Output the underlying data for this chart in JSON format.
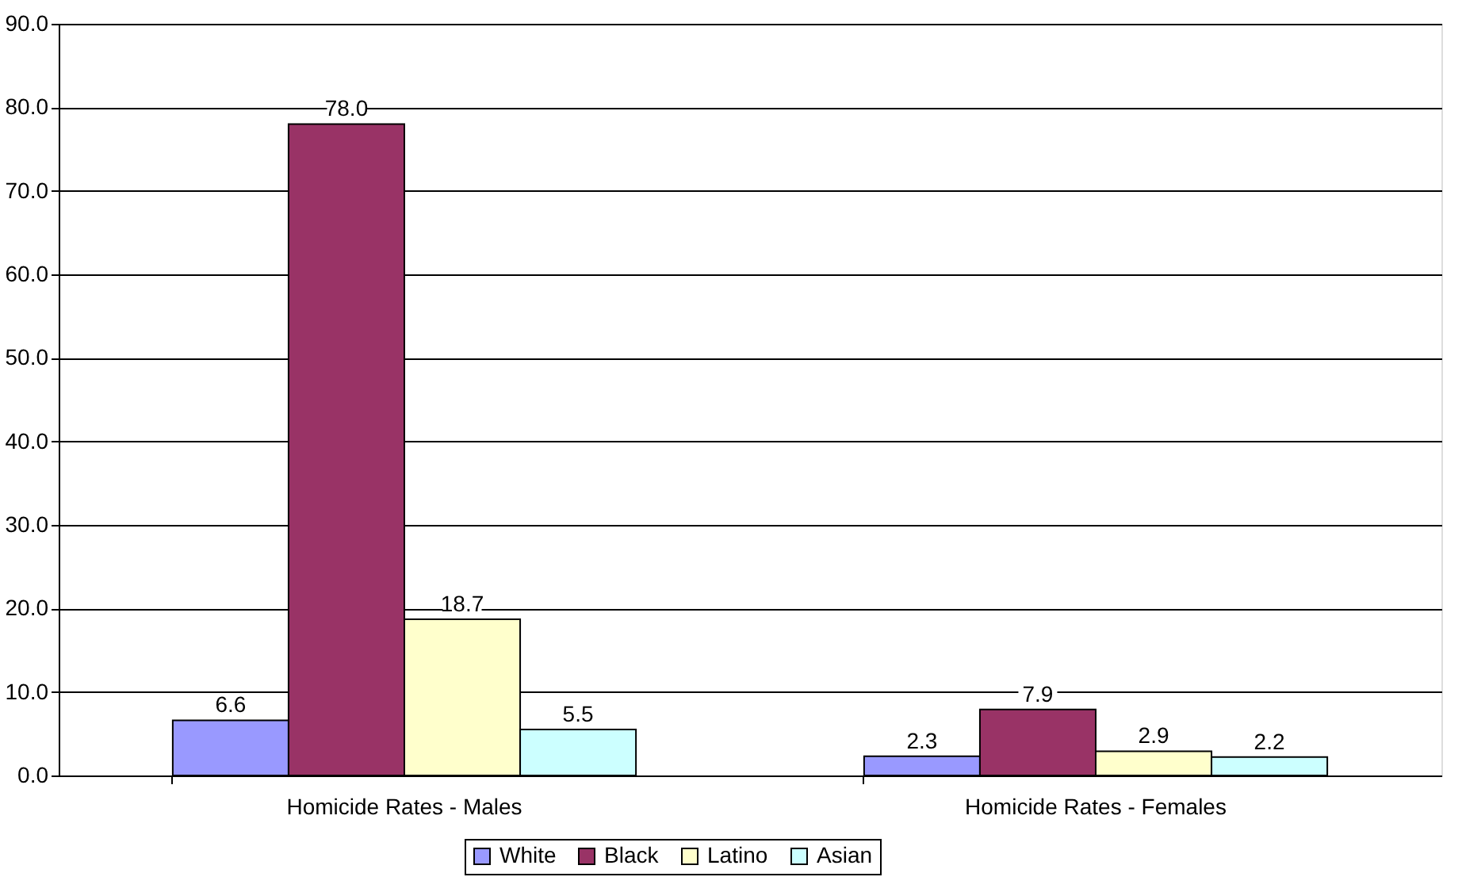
{
  "chart_data": {
    "type": "bar",
    "categories": [
      "Homicide Rates - Males",
      "Homicide Rates - Females"
    ],
    "series": [
      {
        "name": "White",
        "color": "#9999ff",
        "values": [
          6.6,
          2.3
        ],
        "value_labels": [
          "6.6",
          "2.3"
        ]
      },
      {
        "name": "Black",
        "color": "#993366",
        "values": [
          78.0,
          7.9
        ],
        "value_labels": [
          "78.0",
          "7.9"
        ]
      },
      {
        "name": "Latino",
        "color": "#ffffcc",
        "values": [
          18.7,
          2.9
        ],
        "value_labels": [
          "18.7",
          "2.9"
        ]
      },
      {
        "name": "Asian",
        "color": "#ccffff",
        "values": [
          5.5,
          2.2
        ],
        "value_labels": [
          "5.5",
          "2.2"
        ]
      }
    ],
    "ylim": [
      0,
      90
    ],
    "yticks": [
      {
        "value": 0,
        "label": "0.0"
      },
      {
        "value": 10,
        "label": "10.0"
      },
      {
        "value": 20,
        "label": "20.0"
      },
      {
        "value": 30,
        "label": "30.0"
      },
      {
        "value": 40,
        "label": "40.0"
      },
      {
        "value": 50,
        "label": "50.0"
      },
      {
        "value": 60,
        "label": "60.0"
      },
      {
        "value": 70,
        "label": "70.0"
      },
      {
        "value": 80,
        "label": "80.0"
      },
      {
        "value": 90,
        "label": "90.0"
      }
    ],
    "grid": "y",
    "legend": "bottom"
  }
}
